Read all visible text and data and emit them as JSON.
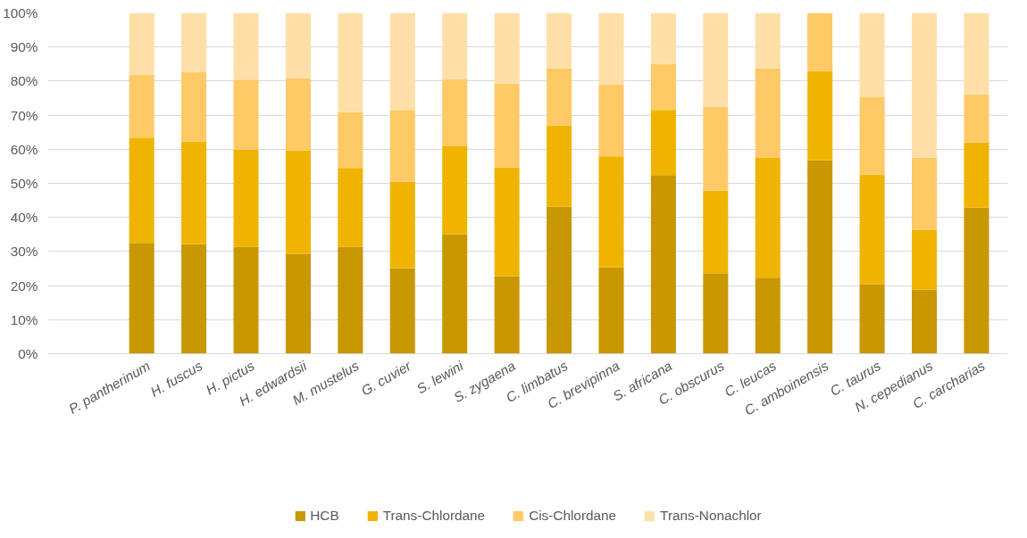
{
  "chart_data": {
    "type": "bar",
    "stacked": true,
    "categories": [
      "P. pantherinum",
      "H. fuscus",
      "H. pictus",
      "H. edwardsii",
      "M. mustelus",
      "G. cuvier",
      "S. lewini",
      "S. zygaena",
      "C. limbatus",
      "C. brevipinna",
      "S. africana",
      "C. obscurus",
      "C. leucas",
      "C. amboinensis",
      "C. taurus",
      "N. cepedianus",
      "C. carcharias"
    ],
    "series": [
      {
        "name": "HCB",
        "color": "#c99700",
        "values": [
          32.5,
          32.2,
          31.4,
          29.3,
          31.4,
          25.1,
          35.1,
          22.8,
          43.2,
          25.4,
          52.4,
          23.6,
          22.3,
          56.8,
          20.4,
          18.8,
          42.9
        ]
      },
      {
        "name": "Trans-Chlordane",
        "color": "#f0b400",
        "values": [
          30.9,
          30.1,
          28.5,
          30.4,
          23.1,
          25.4,
          25.9,
          31.9,
          23.8,
          32.5,
          19.1,
          24.3,
          35.3,
          26.2,
          32.2,
          17.6,
          19.1
        ]
      },
      {
        "name": "Cis-Chlordane",
        "color": "#ffc966",
        "values": [
          18.5,
          20.4,
          20.5,
          21.2,
          16.4,
          21.0,
          19.6,
          24.6,
          16.8,
          21.1,
          13.6,
          24.6,
          26.2,
          17.0,
          22.8,
          21.2,
          14.2
        ]
      },
      {
        "name": "Trans-Nonachlor",
        "color": "#ffdfa8",
        "values": [
          18.1,
          17.3,
          19.6,
          19.1,
          29.1,
          28.5,
          19.4,
          20.7,
          16.2,
          21.0,
          14.9,
          27.5,
          16.2,
          0,
          24.6,
          42.4,
          23.8
        ]
      }
    ],
    "ylim": [
      0,
      100
    ],
    "yticks": [
      {
        "value": 0,
        "label": "0%"
      },
      {
        "value": 10,
        "label": "10%"
      },
      {
        "value": 20,
        "label": "20%"
      },
      {
        "value": 30,
        "label": "30%"
      },
      {
        "value": 40,
        "label": "40%"
      },
      {
        "value": 50,
        "label": "50%"
      },
      {
        "value": 60,
        "label": "60%"
      },
      {
        "value": 70,
        "label": "70%"
      },
      {
        "value": 80,
        "label": "80%"
      },
      {
        "value": 90,
        "label": "90%"
      },
      {
        "value": 100,
        "label": "100%"
      }
    ],
    "grid": "y",
    "legend": "bottom"
  }
}
